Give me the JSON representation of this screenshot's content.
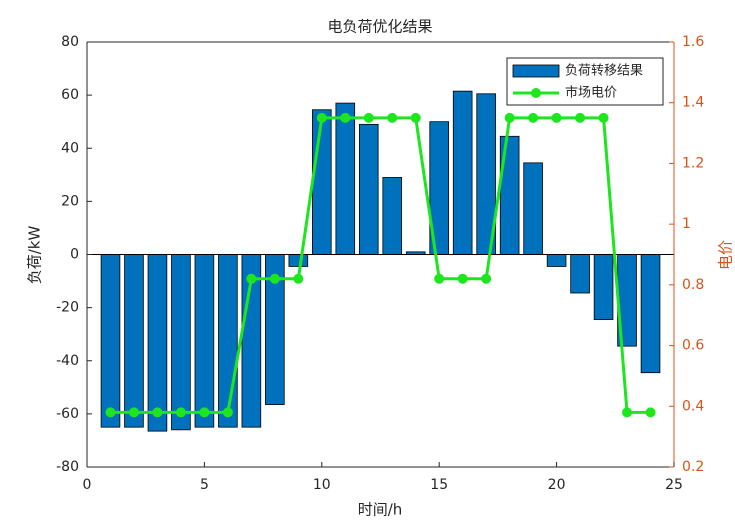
{
  "chart_data": {
    "type": "bar-line",
    "title": "电负荷优化结果",
    "x_label": "时间/h",
    "y_label": "负荷/kW",
    "y2_label": "电价",
    "x": [
      1,
      2,
      3,
      4,
      5,
      6,
      7,
      8,
      9,
      10,
      11,
      12,
      13,
      14,
      15,
      16,
      17,
      18,
      19,
      20,
      21,
      22,
      23,
      24
    ],
    "series": [
      {
        "name": "负荷转移结果",
        "type": "bar",
        "color": "#0072bd",
        "values": [
          -65,
          -65,
          -66.5,
          -66,
          -65,
          -65,
          -65,
          -56.5,
          -4.5,
          54.5,
          57,
          49,
          29,
          1,
          50,
          61.5,
          60.5,
          44.5,
          34.5,
          -4.5,
          -14.5,
          -24.5,
          -34.5,
          -44.5
        ]
      },
      {
        "name": "市场电价",
        "type": "line",
        "axis": "y2",
        "color": "#1ee61e",
        "values": [
          0.38,
          0.38,
          0.38,
          0.38,
          0.38,
          0.38,
          0.82,
          0.82,
          0.82,
          1.35,
          1.35,
          1.35,
          1.35,
          1.35,
          0.82,
          0.82,
          0.82,
          1.35,
          1.35,
          1.35,
          1.35,
          1.35,
          0.38,
          0.38
        ]
      }
    ],
    "xlim": [
      0,
      25
    ],
    "xticks": [
      0,
      5,
      10,
      15,
      20,
      25
    ],
    "ylim": [
      -80,
      80
    ],
    "yticks": [
      -80,
      -60,
      -40,
      -20,
      0,
      20,
      40,
      60,
      80
    ],
    "y2lim": [
      0.2,
      1.6
    ],
    "y2ticks": [
      0.2,
      0.4,
      0.6,
      0.8,
      1,
      1.2,
      1.4,
      1.6
    ],
    "y2_color": "#d95319",
    "legend": "upper right"
  }
}
